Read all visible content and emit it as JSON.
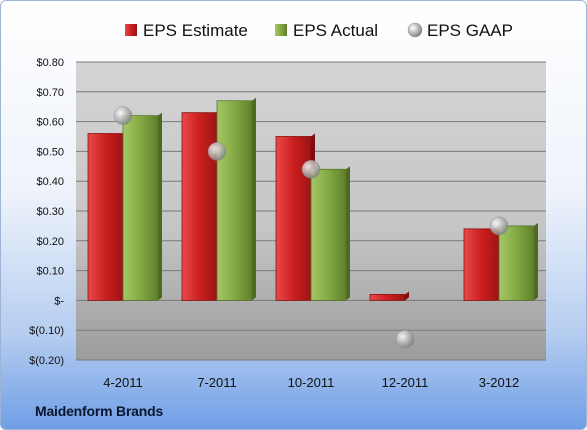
{
  "company": "Maidenform Brands",
  "chart_data": {
    "type": "bar",
    "categories": [
      "4-2011",
      "7-2011",
      "10-2011",
      "12-2011",
      "3-2012"
    ],
    "series": [
      {
        "name": "EPS Estimate",
        "kind": "bar",
        "color": "#cc2020",
        "values": [
          0.56,
          0.63,
          0.55,
          0.02,
          0.24
        ]
      },
      {
        "name": "EPS Actual",
        "kind": "bar",
        "color": "#7fa83e",
        "values": [
          0.62,
          0.67,
          0.44,
          null,
          0.25
        ]
      },
      {
        "name": "EPS GAAP",
        "kind": "marker",
        "color": "#b0b0b0",
        "values": [
          0.62,
          0.5,
          0.44,
          -0.13,
          0.25
        ]
      }
    ],
    "ylim": [
      -0.2,
      0.8
    ],
    "yticks": [
      {
        "value": 0.8,
        "label": "$0.80"
      },
      {
        "value": 0.7,
        "label": "$0.70"
      },
      {
        "value": 0.6,
        "label": "$0.60"
      },
      {
        "value": 0.5,
        "label": "$0.50"
      },
      {
        "value": 0.4,
        "label": "$0.40"
      },
      {
        "value": 0.3,
        "label": "$0.30"
      },
      {
        "value": 0.2,
        "label": "$0.20"
      },
      {
        "value": 0.1,
        "label": "$0.10"
      },
      {
        "value": 0.0,
        "label": "$-"
      },
      {
        "value": -0.1,
        "label": "$(0.10)"
      },
      {
        "value": -0.2,
        "label": "$(0.20)"
      }
    ],
    "legend_position": "top",
    "grid": true
  }
}
